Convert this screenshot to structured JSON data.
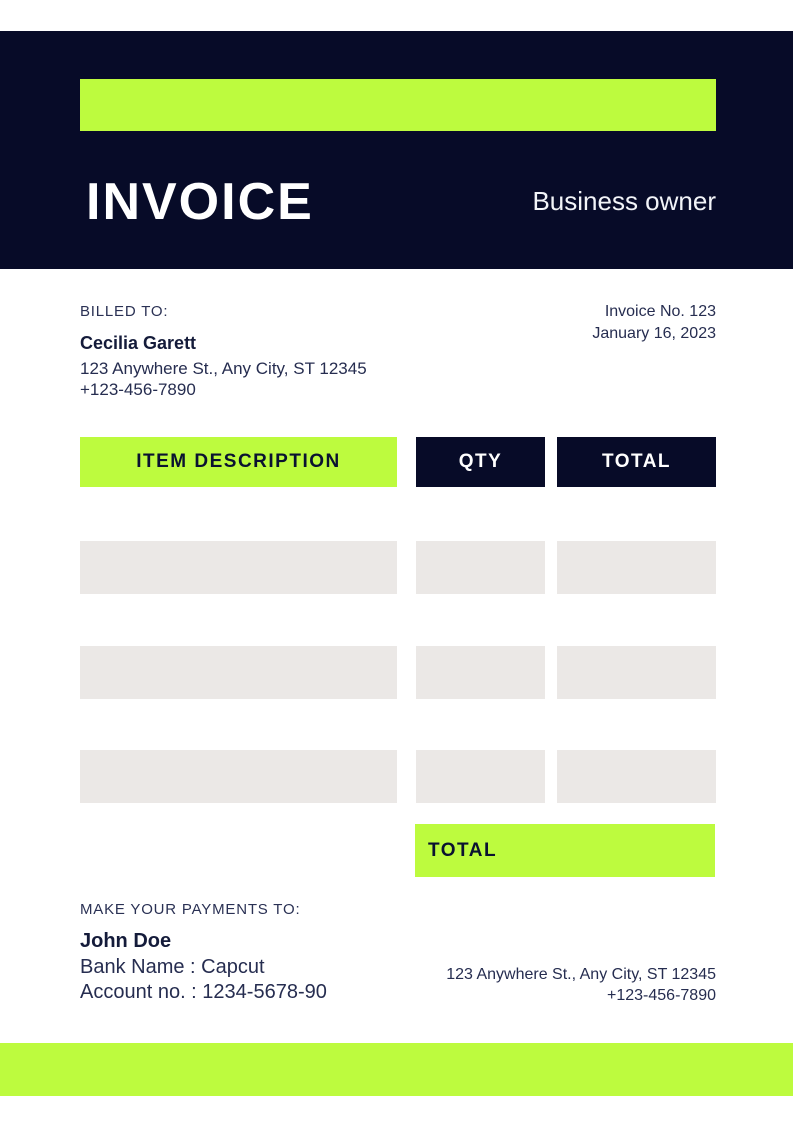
{
  "colors": {
    "navy": "#070b28",
    "green": "#bdfb3e",
    "row_gray": "#ebe8e6",
    "body_text": "#262d50"
  },
  "header": {
    "title": "INVOICE",
    "subtitle": "Business owner"
  },
  "billing": {
    "label": "BILLED TO:",
    "name": "Cecilia Garett",
    "address": "123 Anywhere St., Any City, ST 12345",
    "phone": "+123-456-7890"
  },
  "invoice_meta": {
    "number": "Invoice No. 123",
    "date": "January 16, 2023"
  },
  "table": {
    "col_desc": "ITEM DESCRIPTION",
    "col_qty": "QTY",
    "col_total": "TOTAL",
    "rows": [
      {
        "description": "",
        "qty": "",
        "total": ""
      },
      {
        "description": "",
        "qty": "",
        "total": ""
      },
      {
        "description": "",
        "qty": "",
        "total": ""
      }
    ],
    "total_label": "TOTAL"
  },
  "payment": {
    "label": "MAKE YOUR PAYMENTS TO:",
    "payee": "John Doe",
    "bank": "Bank Name : Capcut",
    "account": "Account no. : 1234-5678-90"
  },
  "footer_contact": {
    "address": "123 Anywhere St., Any City, ST 12345",
    "phone": "+123-456-7890"
  }
}
